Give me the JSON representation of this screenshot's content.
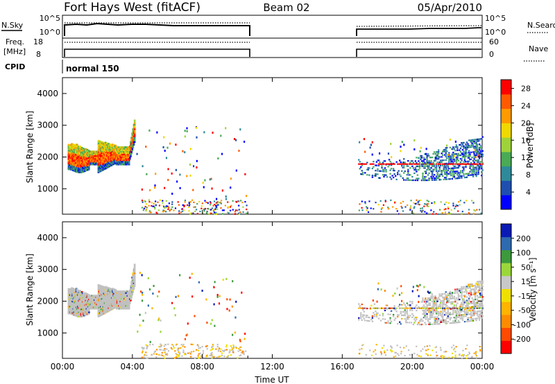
{
  "header": {
    "station": "Fort Hays West (fitACF)",
    "beam": "Beam 02",
    "date": "05/Apr/2010"
  },
  "noise_panel": {
    "left_label": "N.Sky",
    "left_ticks": [
      "10^5",
      "10^0"
    ],
    "right_label": "N.Search",
    "right_ticks": [
      "10^5",
      "10^0"
    ]
  },
  "freq_panel": {
    "left_label_line1": "Freq.",
    "left_label_line2": "[MHz]",
    "left_ticks": [
      "18",
      "8"
    ],
    "right_label": "Nave",
    "right_ticks": [
      "60",
      "0"
    ]
  },
  "cpid": {
    "label": "CPID",
    "mode": "normal 150"
  },
  "x_axis": {
    "label": "Time UT",
    "ticks": [
      "00:00",
      "04:00",
      "08:00",
      "12:00",
      "16:00",
      "20:00",
      "00:00"
    ]
  },
  "colors": {
    "power_scale": [
      "#0000ff",
      "#1e4fb0",
      "#2e8a9a",
      "#4aaa55",
      "#9fd23a",
      "#f0d800",
      "#ff9a00",
      "#ff5a00",
      "#ff0000"
    ],
    "velocity_scale": [
      "#ff0000",
      "#ff4a00",
      "#ff8c00",
      "#ffb400",
      "#f0e000",
      "#c8c8c8",
      "#9ad83a",
      "#3c9a3c",
      "#2e6ab0",
      "#0a1ab4"
    ],
    "ground_scatter": "#c0c0c0"
  },
  "chart_data": [
    {
      "type": "heatmap",
      "title": "Power",
      "xlabel": "Time UT",
      "ylabel": "Slant Range [km]",
      "xlim": [
        0,
        24
      ],
      "ylim": [
        200,
        4500
      ],
      "y_ticks": [
        "1000",
        "2000",
        "3000",
        "4000"
      ],
      "colorbar": {
        "label": "Power [dB]",
        "ticks": [
          "4",
          "8",
          "12",
          "16",
          "20",
          "24",
          "28"
        ],
        "range": [
          0,
          30
        ]
      },
      "data_gaps": [
        [
          10.6,
          16.9
        ]
      ],
      "scatter_regions": [
        {
          "time_start": 0.0,
          "time_end": 4.1,
          "range_low": 1600,
          "range_high": 2600,
          "peak_power_db": 28
        },
        {
          "time_start": 16.9,
          "time_end": 24.0,
          "range_low": 1300,
          "range_high": 2700,
          "peak_power_db": 12
        }
      ]
    },
    {
      "type": "heatmap",
      "title": "Velocity",
      "xlabel": "Time UT",
      "ylabel": "Slant Range [km]",
      "xlim": [
        0,
        24
      ],
      "ylim": [
        200,
        4500
      ],
      "y_ticks": [
        "1000",
        "2000",
        "3000",
        "4000"
      ],
      "colorbar": {
        "label": "Velocity [m s⁻¹]",
        "ticks": [
          "200",
          "100",
          "50",
          "15",
          "-15",
          "-50",
          "-100",
          "-200"
        ],
        "range": [
          -250,
          250
        ]
      },
      "data_gaps": [
        [
          10.6,
          16.9
        ]
      ],
      "scatter_regions": [
        {
          "time_start": 0.0,
          "time_end": 4.1,
          "range_low": 1600,
          "range_high": 2600,
          "dominant": "ground scatter"
        },
        {
          "time_start": 16.9,
          "time_end": 24.0,
          "range_low": 1300,
          "range_high": 2700,
          "dominant": "ground scatter"
        }
      ]
    }
  ]
}
